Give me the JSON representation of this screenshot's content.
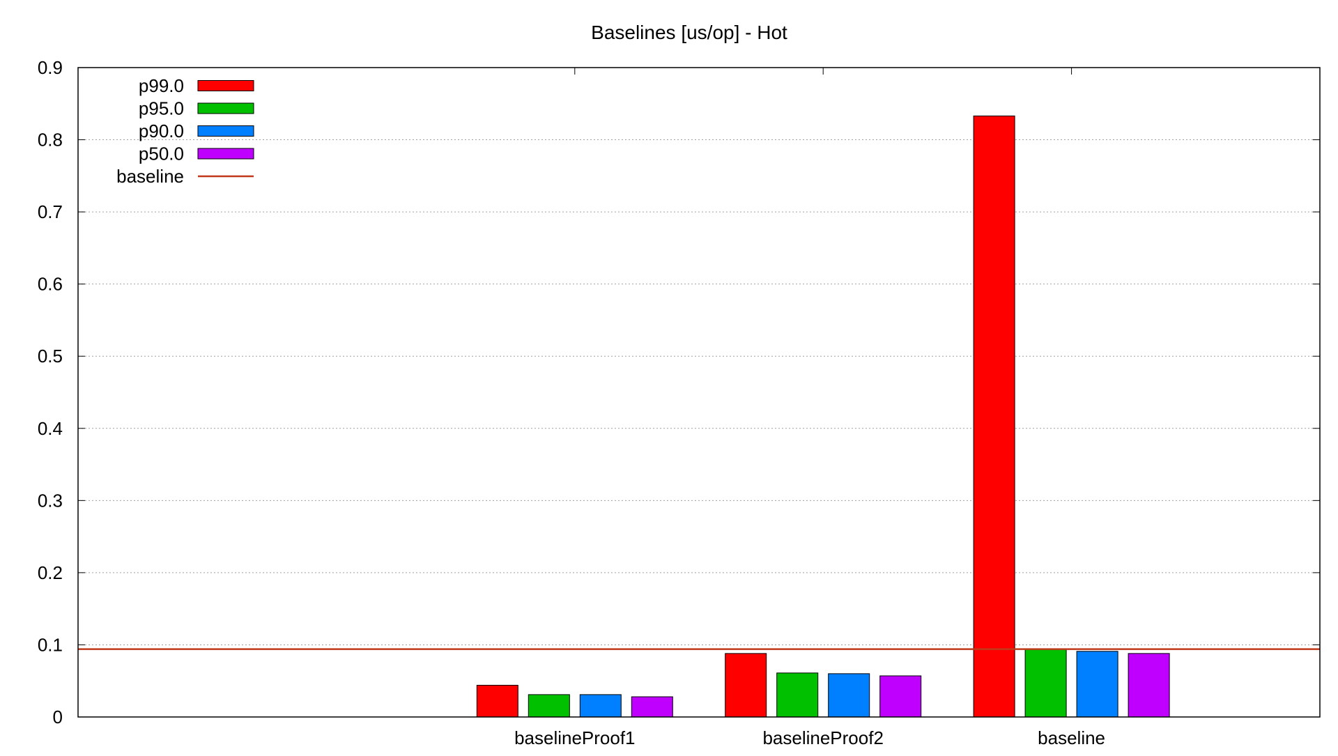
{
  "chart_data": {
    "type": "bar",
    "title": "Baselines [us/op] - Hot",
    "xlabel": "",
    "ylabel": "",
    "categories": [
      "baselineProof1",
      "baselineProof2",
      "baseline"
    ],
    "series": [
      {
        "name": "p99.0",
        "color": "#ff0000",
        "values": [
          0.044,
          0.088,
          0.833
        ]
      },
      {
        "name": "p95.0",
        "color": "#00c000",
        "values": [
          0.031,
          0.061,
          0.094
        ]
      },
      {
        "name": "p90.0",
        "color": "#0080ff",
        "values": [
          0.031,
          0.06,
          0.091
        ]
      },
      {
        "name": "p50.0",
        "color": "#c000ff",
        "values": [
          0.028,
          0.057,
          0.088
        ]
      }
    ],
    "reference_line": {
      "name": "baseline",
      "value": 0.094,
      "color": "#c0391b"
    },
    "ylim": [
      0,
      0.9
    ],
    "yticks": [
      "0",
      "0.1",
      "0.2",
      "0.3",
      "0.4",
      "0.5",
      "0.6",
      "0.7",
      "0.8",
      "0.9"
    ],
    "grid": "horizontal dotted",
    "legend_position": "top-left"
  }
}
